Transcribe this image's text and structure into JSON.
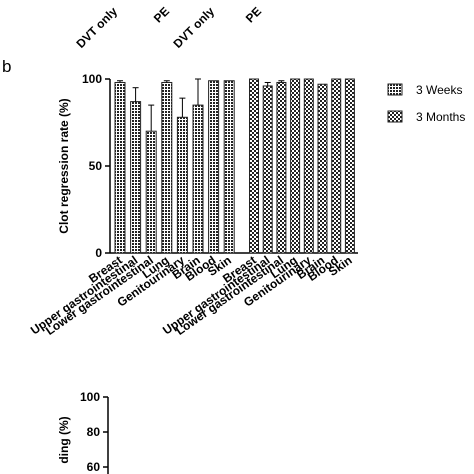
{
  "panel_label": "b",
  "chart_data": [
    {
      "type": "bar",
      "categories": [
        "DVT only",
        "PE",
        "DVT only",
        "PE"
      ]
    },
    {
      "type": "bar",
      "y_label": "Clot regression rate (%)",
      "categories": [
        "Breast",
        "Upper gastrointestinal",
        "Lower gastrointestinal",
        "Lung",
        "Genitourinary",
        "Brain",
        "Blood",
        "Skin"
      ],
      "series": [
        {
          "name": "3 Weeks",
          "color": "#222222",
          "pattern": "dense",
          "values": [
            98,
            87,
            70,
            98,
            78,
            85,
            99,
            99
          ],
          "errors": [
            1,
            8,
            15,
            1,
            11,
            15,
            null,
            null
          ]
        },
        {
          "name": "3 Months",
          "color": "#222222",
          "pattern": "check",
          "values": [
            100,
            96,
            98,
            100,
            100,
            97,
            100,
            100
          ],
          "errors": [
            null,
            2,
            1,
            null,
            null,
            null,
            null,
            null
          ]
        }
      ],
      "ylim": [
        0,
        100
      ],
      "yticks": [
        0,
        50,
        100
      ],
      "legend": "right"
    },
    {
      "type": "bar",
      "y_label": "ding (%)",
      "ylim": [
        0,
        100
      ],
      "yticks": [
        60,
        80,
        100
      ]
    }
  ]
}
